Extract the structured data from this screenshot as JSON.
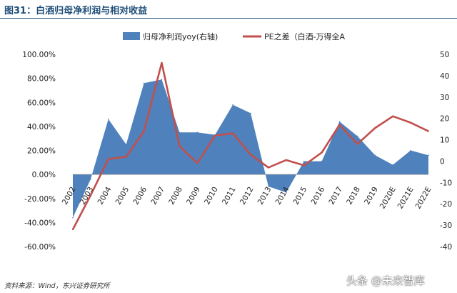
{
  "header": {
    "title": "图31：白酒归母净利润与相对收益"
  },
  "footer": {
    "source": "资料来源：Wind，东兴证券研究所",
    "watermark": "头条 @未来智库"
  },
  "chart_data": {
    "type": "area",
    "title": "图31：白酒归母净利润与相对收益",
    "categories": [
      "2002",
      "2003",
      "2004",
      "2005",
      "2006",
      "2007",
      "2008",
      "2009",
      "2010",
      "2011",
      "2012",
      "2013",
      "2014",
      "2015",
      "2016",
      "2017",
      "2018",
      "2019",
      "2020E",
      "2021E",
      "2022E"
    ],
    "series": [
      {
        "name": "归母净利润yoy(右轴)",
        "type": "area",
        "axis": "left",
        "color": "#4f81bd",
        "values": [
          -36,
          -4,
          46,
          25,
          76,
          79,
          35,
          35,
          33,
          58,
          51,
          -10,
          -15,
          11,
          11,
          44,
          32,
          16,
          8,
          20,
          16
        ]
      },
      {
        "name": "PE之差（白酒-万得全A",
        "type": "line",
        "axis": "right",
        "color": "#c0504d",
        "values": [
          -32,
          -16,
          1,
          2,
          14,
          46,
          7,
          -1,
          12,
          13,
          3,
          -3,
          0.5,
          -2,
          4,
          17,
          8,
          15.5,
          21,
          18,
          14
        ]
      }
    ],
    "left_axis": {
      "min": -0.6,
      "max": 1.0,
      "ticks": [
        "100.00%",
        "80.00%",
        "60.00%",
        "40.00%",
        "20.00%",
        "0.00%",
        "-20.00%",
        "-40.00%",
        "-60.00%"
      ]
    },
    "right_axis": {
      "min": -40,
      "max": 50,
      "ticks": [
        "50",
        "40",
        "30",
        "20",
        "10",
        "0",
        "-10",
        "-20",
        "-30",
        "-40"
      ]
    },
    "legend": {
      "position": "top"
    }
  },
  "colors": {
    "area": "#4f81bd",
    "line": "#c0504d",
    "title": "#1f4e79"
  }
}
